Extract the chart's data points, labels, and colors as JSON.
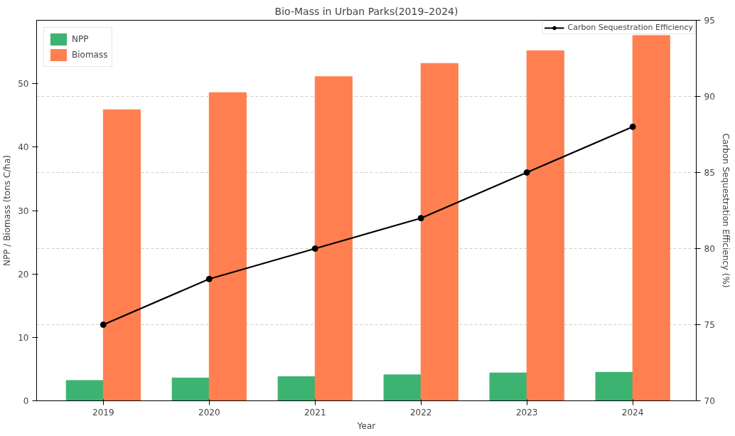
{
  "chart_data": {
    "type": "bar",
    "title": "Bio-Mass in Urban Parks(2019–2024)",
    "xlabel": "Year",
    "ylabel": "NPP / Biomass (tons C/ha)",
    "y2label": "Carbon Sequestration Efficiency (%)",
    "categories": [
      "2019",
      "2020",
      "2021",
      "2022",
      "2023",
      "2024"
    ],
    "series": [
      {
        "name": "NPP",
        "color": "#3cb371",
        "values": [
          3.2,
          3.6,
          3.8,
          4.1,
          4.4,
          4.5
        ]
      },
      {
        "name": "Biomass",
        "color": "#ff7f50",
        "values": [
          45.9,
          48.6,
          51.1,
          53.2,
          55.2,
          57.6
        ]
      },
      {
        "name": "Carbon Sequestration Efficiency",
        "type": "line",
        "axis": "y2",
        "color": "#000000",
        "marker": "circle",
        "values": [
          75,
          78,
          80,
          82,
          85,
          88
        ]
      }
    ],
    "ylim": [
      0,
      60
    ],
    "yticks": [
      0,
      10,
      20,
      30,
      40,
      50
    ],
    "y2lim": [
      70,
      95
    ],
    "y2ticks": [
      70,
      75,
      80,
      85,
      90,
      95
    ],
    "grid": "y2",
    "legend": "top"
  }
}
